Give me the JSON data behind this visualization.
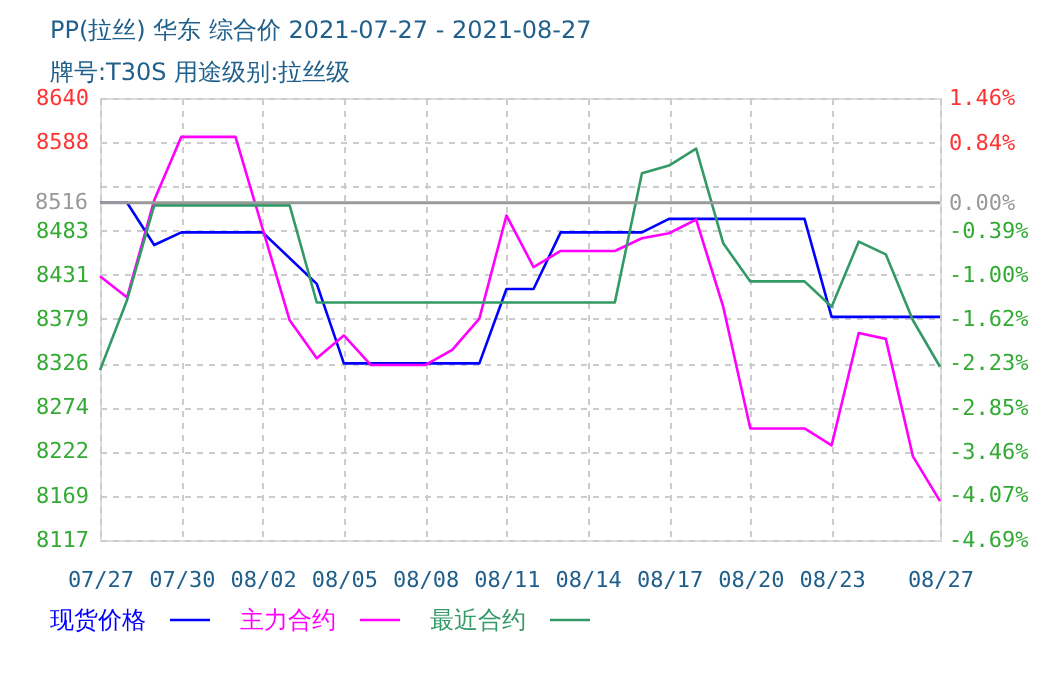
{
  "chart_data": {
    "type": "line",
    "title": "PP(拉丝) 华东 综合价 2021-07-27 - 2021-08-27",
    "subtitle": "牌号:T30S 用途级别:拉丝级",
    "series": [
      {
        "name": "现货价格",
        "color": "#0000ff",
        "x": [
          "2021-07-27",
          "2021-07-28",
          "2021-07-29",
          "2021-07-30",
          "2021-08-02",
          "2021-08-04",
          "2021-08-05",
          "2021-08-10",
          "2021-08-11",
          "2021-08-12",
          "2021-08-13",
          "2021-08-16",
          "2021-08-17",
          "2021-08-22",
          "2021-08-23",
          "2021-08-27"
        ],
        "values": [
          8516,
          8516,
          8466,
          8481,
          8481,
          8420,
          8326,
          8326,
          8414,
          8414,
          8481,
          8481,
          8497,
          8497,
          8381,
          8381
        ]
      },
      {
        "name": "主力合约",
        "color": "#ff00ff",
        "x": [
          "2021-07-27",
          "2021-07-28",
          "2021-07-29",
          "2021-07-30",
          "2021-08-01",
          "2021-08-03",
          "2021-08-04",
          "2021-08-05",
          "2021-08-06",
          "2021-08-08",
          "2021-08-09",
          "2021-08-10",
          "2021-08-11",
          "2021-08-12",
          "2021-08-13",
          "2021-08-15",
          "2021-08-16",
          "2021-08-17",
          "2021-08-18",
          "2021-08-19",
          "2021-08-20",
          "2021-08-22",
          "2021-08-23",
          "2021-08-24",
          "2021-08-25",
          "2021-08-26",
          "2021-08-27"
        ],
        "values": [
          8429,
          8404,
          8519,
          8594,
          8594,
          8377,
          8332,
          8359,
          8324,
          8324,
          8342,
          8379,
          8501,
          8440,
          8459,
          8459,
          8474,
          8480,
          8496,
          8393,
          8249,
          8249,
          8229,
          8362,
          8355,
          8216,
          8163
        ]
      },
      {
        "name": "最近合约",
        "color": "#339966",
        "x": [
          "2021-07-27",
          "2021-07-28",
          "2021-07-29",
          "2021-08-03",
          "2021-08-04",
          "2021-08-15",
          "2021-08-16",
          "2021-08-17",
          "2021-08-18",
          "2021-08-19",
          "2021-08-20",
          "2021-08-22",
          "2021-08-23",
          "2021-08-24",
          "2021-08-25",
          "2021-08-26",
          "2021-08-27"
        ],
        "values": [
          8318,
          8401,
          8513,
          8513,
          8398,
          8398,
          8551,
          8560,
          8580,
          8468,
          8423,
          8423,
          8393,
          8470,
          8455,
          8377,
          8322
        ]
      }
    ],
    "xlim": [
      "2021-07-27",
      "2021-08-27"
    ],
    "xticks": [
      {
        "value": "2021-07-27",
        "label": "07/27"
      },
      {
        "value": "2021-07-30",
        "label": "07/30"
      },
      {
        "value": "2021-08-02",
        "label": "08/02"
      },
      {
        "value": "2021-08-05",
        "label": "08/05"
      },
      {
        "value": "2021-08-08",
        "label": "08/08"
      },
      {
        "value": "2021-08-11",
        "label": "08/11"
      },
      {
        "value": "2021-08-14",
        "label": "08/14"
      },
      {
        "value": "2021-08-17",
        "label": "08/17"
      },
      {
        "value": "2021-08-20",
        "label": "08/20"
      },
      {
        "value": "2021-08-23",
        "label": "08/23"
      },
      {
        "value": "2021-08-27",
        "label": "08/27"
      }
    ],
    "ylim": [
      8117,
      8640
    ],
    "yticks": [
      8117,
      8169,
      8222,
      8274,
      8326,
      8379,
      8431,
      8483,
      {
        "value": 8536,
        "label": null
      },
      8588,
      8640
    ],
    "y2lim": [
      -4.69,
      1.46
    ],
    "y2ticks": [
      {
        "value": -4.69,
        "label": "-4.69%"
      },
      {
        "value": -4.07,
        "label": "-4.07%"
      },
      {
        "value": -3.46,
        "label": "-3.46%"
      },
      {
        "value": -2.85,
        "label": "-2.85%"
      },
      {
        "value": -2.23,
        "label": "-2.23%"
      },
      {
        "value": -1.62,
        "label": "-1.62%"
      },
      {
        "value": -1.0,
        "label": "-1.00%"
      },
      {
        "value": -0.39,
        "label": "-0.39%"
      },
      {
        "value": 0,
        "label": "0.00%"
      },
      {
        "value": 0.84,
        "label": "0.84%"
      },
      {
        "value": 1.46,
        "label": "1.46%"
      }
    ],
    "ref_lines": [
      {
        "axis": "y",
        "value": 8516,
        "label": "8516",
        "color": "#999999"
      }
    ],
    "grid": true,
    "legend": "bottom",
    "marker": "none",
    "line_style": "solid"
  }
}
